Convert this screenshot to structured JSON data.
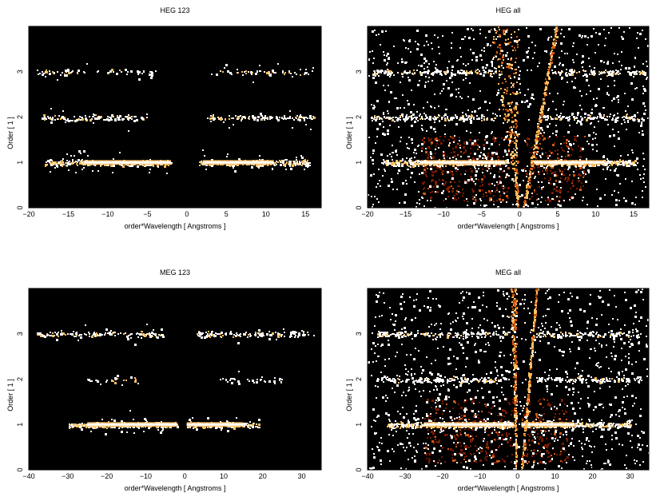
{
  "chart_data": [
    {
      "type": "heatmap",
      "title": "HEG 123",
      "xlabel": "order*Wavelength [ Angstroms ]",
      "ylabel": "Order [ 1 ]",
      "xlim": [
        -20,
        17
      ],
      "ylim": [
        0,
        4
      ],
      "xticks": [
        -20,
        -15,
        -10,
        -5,
        0,
        5,
        10,
        15
      ],
      "yticks": [
        0,
        1,
        2,
        3
      ],
      "background": "#000000",
      "bands": [
        {
          "order": 1,
          "x_ranges": [
            [
              -18,
              -2
            ],
            [
              1.5,
              15.5
            ]
          ],
          "bright_ranges": [
            [
              -13,
              -2
            ],
            [
              2,
              11
            ]
          ],
          "density": "high"
        },
        {
          "order": 2,
          "x_ranges": [
            [
              -18.5,
              -5
            ],
            [
              2.5,
              16
            ]
          ],
          "density": "medium"
        },
        {
          "order": 3,
          "x_ranges": [
            [
              -19,
              -4
            ],
            [
              3,
              16
            ]
          ],
          "density": "low"
        }
      ],
      "wedges": false
    },
    {
      "type": "heatmap",
      "title": "HEG all",
      "xlabel": "order*Wavelength [ Angstroms ]",
      "ylabel": "Order [ 1 ]",
      "xlim": [
        -20,
        17
      ],
      "ylim": [
        0,
        4
      ],
      "xticks": [
        -20,
        -15,
        -10,
        -5,
        0,
        5,
        10,
        15
      ],
      "yticks": [
        0,
        1,
        2,
        3
      ],
      "background": "#000000",
      "bands": [
        {
          "order": 1,
          "x_ranges": [
            [
              -18,
              -1.5
            ],
            [
              1.5,
              15.5
            ]
          ],
          "bright_ranges": [
            [
              -13,
              -2
            ],
            [
              1.5,
              11
            ]
          ],
          "density": "high"
        },
        {
          "order": 2,
          "x_ranges": [
            [
              -19.5,
              -3
            ],
            [
              3,
              16.5
            ]
          ],
          "density": "medium"
        },
        {
          "order": 3,
          "x_ranges": [
            [
              -19.5,
              -3
            ],
            [
              4,
              16.5
            ]
          ],
          "density": "medium"
        }
      ],
      "wedges": true,
      "wedge_left": [
        -4,
        -0.3
      ],
      "wedge_right": [
        0.5,
        4.8
      ],
      "halo_ranges": [
        [
          -13,
          -1.5
        ],
        [
          0.5,
          8.5
        ]
      ]
    },
    {
      "type": "heatmap",
      "title": "MEG 123",
      "xlabel": "order*Wavelength [ Angstroms ]",
      "ylabel": "Order [ 1 ]",
      "xlim": [
        -40,
        35
      ],
      "ylim": [
        0,
        4
      ],
      "xticks": [
        -40,
        -30,
        -20,
        -10,
        0,
        10,
        20,
        30
      ],
      "yticks": [
        0,
        1,
        2,
        3
      ],
      "background": "#000000",
      "bands": [
        {
          "order": 1,
          "x_ranges": [
            [
              -30,
              -2
            ],
            [
              0.5,
              19
            ]
          ],
          "bright_ranges": [
            [
              -25,
              -2
            ],
            [
              0.5,
              15
            ]
          ],
          "density": "high"
        },
        {
          "order": 2,
          "x_ranges": [
            [
              -25,
              -12
            ],
            [
              8,
              25
            ]
          ],
          "density": "low"
        },
        {
          "order": 3,
          "x_ranges": [
            [
              -38,
              -5
            ],
            [
              3,
              33
            ]
          ],
          "density": "medium"
        }
      ],
      "wedges": false
    },
    {
      "type": "heatmap",
      "title": "MEG all",
      "xlabel": "order*Wavelength [ Angstroms ]",
      "ylabel": "Order [ 1 ]",
      "xlim": [
        -40,
        35
      ],
      "ylim": [
        0,
        4
      ],
      "xticks": [
        -40,
        -30,
        -20,
        -10,
        0,
        10,
        20,
        30
      ],
      "yticks": [
        0,
        1,
        2,
        3
      ],
      "background": "#000000",
      "bands": [
        {
          "order": 1,
          "x_ranges": [
            [
              -35,
              -1
            ],
            [
              1,
              30
            ]
          ],
          "bright_ranges": [
            [
              -25,
              -1
            ],
            [
              1,
              15
            ]
          ],
          "density": "high"
        },
        {
          "order": 2,
          "x_ranges": [
            [
              -38,
              -3
            ],
            [
              5,
              33
            ]
          ],
          "density": "medium"
        },
        {
          "order": 3,
          "x_ranges": [
            [
              -38,
              -3
            ],
            [
              5,
              33
            ]
          ],
          "density": "medium"
        }
      ],
      "wedges": true,
      "wedge_left": [
        -2,
        -0.5
      ],
      "wedge_right": [
        1,
        5
      ],
      "halo_ranges": [
        [
          -25,
          -1
        ],
        [
          1,
          13
        ]
      ]
    }
  ],
  "colors": {
    "background": "#000000",
    "hot_low": "#7a1a00",
    "hot_mid": "#d25a10",
    "hot_high": "#ffc060",
    "hot_peak": "#ffffff"
  }
}
